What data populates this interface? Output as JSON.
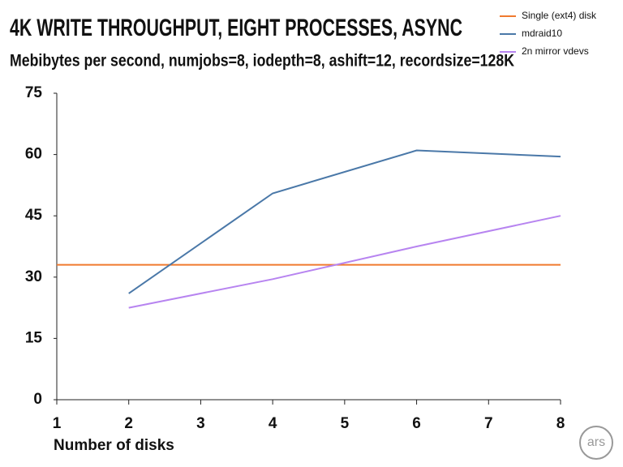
{
  "chart_data": {
    "type": "line",
    "title": "4K WRITE THROUGHPUT, EIGHT PROCESSES, ASYNC",
    "subtitle": "Mebibytes per second, numjobs=8, iodepth=8, ashift=12, recordsize=128K",
    "x_label": "Number of disks",
    "logo": "ars",
    "xlim": [
      1,
      8
    ],
    "xticks": [
      1,
      2,
      3,
      4,
      5,
      6,
      7,
      8
    ],
    "ylim": [
      0,
      75
    ],
    "yticks": [
      0,
      15,
      30,
      45,
      60,
      75
    ],
    "legend": "top-right",
    "series": [
      {
        "name": "Single (ext4) disk",
        "color": "#f07a2e",
        "x": [
          1,
          8
        ],
        "values": [
          33,
          33
        ]
      },
      {
        "name": "mdraid10",
        "color": "#4a78a8",
        "x": [
          2,
          4,
          6,
          8
        ],
        "values": [
          26,
          50.5,
          61,
          59.5
        ]
      },
      {
        "name": "2n mirror vdevs",
        "color": "#b784f0",
        "x": [
          2,
          4,
          6,
          8
        ],
        "values": [
          22.5,
          29.5,
          37.5,
          45
        ]
      }
    ]
  }
}
